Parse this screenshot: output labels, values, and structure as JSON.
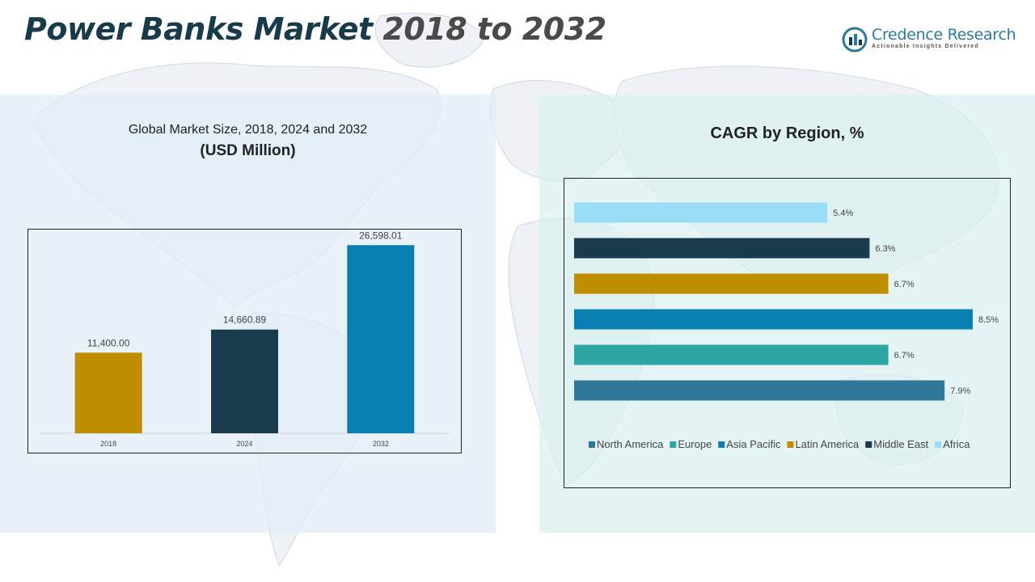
{
  "header": {
    "title_main": "Power Banks Market",
    "title_span": "2018 to 2032"
  },
  "logo": {
    "name": "Credence Research",
    "tagline": "Actionable Insights Delivered"
  },
  "left_panel": {
    "heading": "Global Market Size, 2018, 2024 and 2032",
    "subheading": "(USD Million)"
  },
  "right_panel": {
    "heading": "CAGR by Region, %"
  },
  "colors": {
    "title_dark": "#183b4b",
    "title_grey": "#4a4a4a",
    "brand": "#2a7aa0",
    "gold": "#bf8f00",
    "navy": "#1a3b4d",
    "blue": "#0a7fb3",
    "teal": "#2ea6a4",
    "steel": "#2f7899",
    "sky": "#99ddf6"
  },
  "chart_data": [
    {
      "type": "bar",
      "categories": [
        "2018",
        "2024",
        "2032"
      ],
      "values": [
        11400.0,
        14660.89,
        26598.01
      ],
      "value_labels": [
        "11,400.00",
        "14,660.89",
        "26,598.01"
      ],
      "colors": [
        "#bf8f00",
        "#1a3b4d",
        "#0a7fb3"
      ],
      "title": "Global Market Size, 2018, 2024 and 2032",
      "ylabel": "(USD Million)",
      "ylim": [
        0,
        28000
      ],
      "grid": false,
      "legend": "none"
    },
    {
      "type": "bar",
      "orientation": "horizontal",
      "title": "CAGR by Region, %",
      "series": [
        {
          "name": "North America",
          "value": 7.9,
          "label": "7.9%",
          "color": "#2f7899"
        },
        {
          "name": "Europe",
          "value": 6.7,
          "label": "6.7%",
          "color": "#2ea6a4"
        },
        {
          "name": "Asia Pacific",
          "value": 8.5,
          "label": "8.5%",
          "color": "#0a7fb3"
        },
        {
          "name": "Latin America",
          "value": 6.7,
          "label": "6.7%",
          "color": "#bf8f00"
        },
        {
          "name": "Middle East",
          "value": 6.3,
          "label": "6.3%",
          "color": "#1a3b4d"
        },
        {
          "name": "Africa",
          "value": 5.4,
          "label": "5.4%",
          "color": "#99ddf6"
        }
      ],
      "xlim": [
        0,
        8.5
      ],
      "grid": false,
      "legend": "bottom"
    }
  ]
}
